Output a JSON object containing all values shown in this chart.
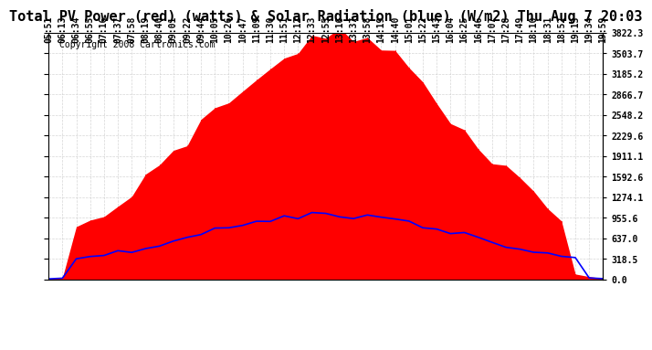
{
  "title": "Total PV Power (red) (watts) & Solar Radiation (blue) (W/m2) Thu Aug 7 20:03",
  "copyright_text": "Copyright 2008 Cartronics.com",
  "y_ticks": [
    0.0,
    318.5,
    637.0,
    955.6,
    1274.1,
    1592.6,
    1911.1,
    2229.6,
    2548.2,
    2866.7,
    3185.2,
    3503.7,
    3822.3
  ],
  "y_max": 3822.3,
  "background_color": "#ffffff",
  "plot_bg_color": "#ffffff",
  "grid_color": "#cccccc",
  "red_fill_color": "#ff0000",
  "blue_line_color": "#0000ff",
  "x_labels": [
    "05:51",
    "06:13",
    "06:34",
    "06:55",
    "07:16",
    "07:37",
    "07:58",
    "08:19",
    "08:40",
    "09:01",
    "09:22",
    "09:44",
    "10:05",
    "10:26",
    "10:47",
    "11:09",
    "11:30",
    "11:51",
    "12:12",
    "12:33",
    "12:55",
    "13:16",
    "13:37",
    "13:58",
    "14:19",
    "14:40",
    "15:01",
    "15:22",
    "15:43",
    "16:04",
    "16:25",
    "16:46",
    "17:07",
    "17:28",
    "17:49",
    "18:10",
    "18:31",
    "18:52",
    "19:13",
    "19:34",
    "19:59"
  ],
  "title_fontsize": 11,
  "tick_fontsize": 7,
  "copyright_fontsize": 7
}
